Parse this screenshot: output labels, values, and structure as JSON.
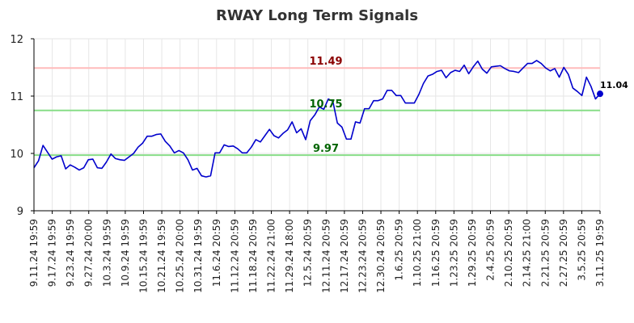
{
  "chart_data": {
    "type": "line",
    "title": "RWAY Long Term Signals",
    "xlabel": "",
    "ylabel": "",
    "ylim": [
      9,
      12
    ],
    "y_ticks": [
      "9",
      "10",
      "11",
      "12"
    ],
    "grid": true,
    "x_tick_labels": [
      "9.11.24 19:59",
      "9.17.24 19:59",
      "9.23.24 19:59",
      "9.27.24 20:00",
      "10.3.24 19:59",
      "10.9.24 19:59",
      "10.15.24 19:59",
      "10.21.24 19:59",
      "10.25.24 20:00",
      "10.31.24 19:59",
      "11.6.24 20:59",
      "11.12.24 20:59",
      "11.18.24 20:59",
      "11.22.24 21:00",
      "11.29.24 18:00",
      "12.5.24 20:59",
      "12.11.24 20:59",
      "12.17.24 20:59",
      "12.23.24 20:59",
      "12.30.24 20:59",
      "1.6.25 20:59",
      "1.10.25 21:00",
      "1.16.25 20:59",
      "1.23.25 20:59",
      "1.29.25 20:59",
      "2.4.25 20:59",
      "2.10.25 20:59",
      "2.14.25 21:00",
      "2.21.25 20:59",
      "2.27.25 20:59",
      "3.5.25 20:59",
      "3.11.25 19:59"
    ],
    "series": [
      {
        "color": "#0000cc",
        "values": [
          9.75,
          9.87,
          10.14,
          10.02,
          9.9,
          9.94,
          9.96,
          9.73,
          9.8,
          9.76,
          9.71,
          9.75,
          9.89,
          9.9,
          9.75,
          9.74,
          9.85,
          9.99,
          9.91,
          9.89,
          9.88,
          9.94,
          10.0,
          10.11,
          10.18,
          10.3,
          10.3,
          10.33,
          10.34,
          10.21,
          10.13,
          10.01,
          10.05,
          10.01,
          9.89,
          9.71,
          9.74,
          9.61,
          9.59,
          9.61,
          10.01,
          10.01,
          10.15,
          10.12,
          10.13,
          10.08,
          10.01,
          10.01,
          10.11,
          10.24,
          10.2,
          10.31,
          10.42,
          10.31,
          10.27,
          10.35,
          10.41,
          10.55,
          10.36,
          10.43,
          10.24,
          10.57,
          10.67,
          10.81,
          10.77,
          10.95,
          10.91,
          10.53,
          10.46,
          10.25,
          10.25,
          10.55,
          10.53,
          10.78,
          10.78,
          10.92,
          10.92,
          10.95,
          11.1,
          11.1,
          11.01,
          11.01,
          10.88,
          10.88,
          10.88,
          11.03,
          11.22,
          11.35,
          11.38,
          11.43,
          11.45,
          11.32,
          11.41,
          11.45,
          11.43,
          11.54,
          11.39,
          11.51,
          11.61,
          11.47,
          11.4,
          11.51,
          11.52,
          11.53,
          11.48,
          11.44,
          11.43,
          11.41,
          11.49,
          11.57,
          11.57,
          11.62,
          11.57,
          11.49,
          11.44,
          11.48,
          11.33,
          11.5,
          11.38,
          11.14,
          11.08,
          11.01,
          11.33,
          11.17,
          10.95,
          11.04
        ]
      }
    ],
    "reference_lines": [
      {
        "value": 11.49,
        "label": "11.49",
        "line_color": "#ffbbbb",
        "label_color": "#8b0000"
      },
      {
        "value": 10.75,
        "label": "10.75",
        "line_color": "#88dd88",
        "label_color": "#006400"
      },
      {
        "value": 9.97,
        "label": "9.97",
        "line_color": "#88dd88",
        "label_color": "#006400"
      }
    ],
    "last_value_label": "11.04",
    "grid_color": "#e6e6e6",
    "axis_color": "#000000"
  }
}
